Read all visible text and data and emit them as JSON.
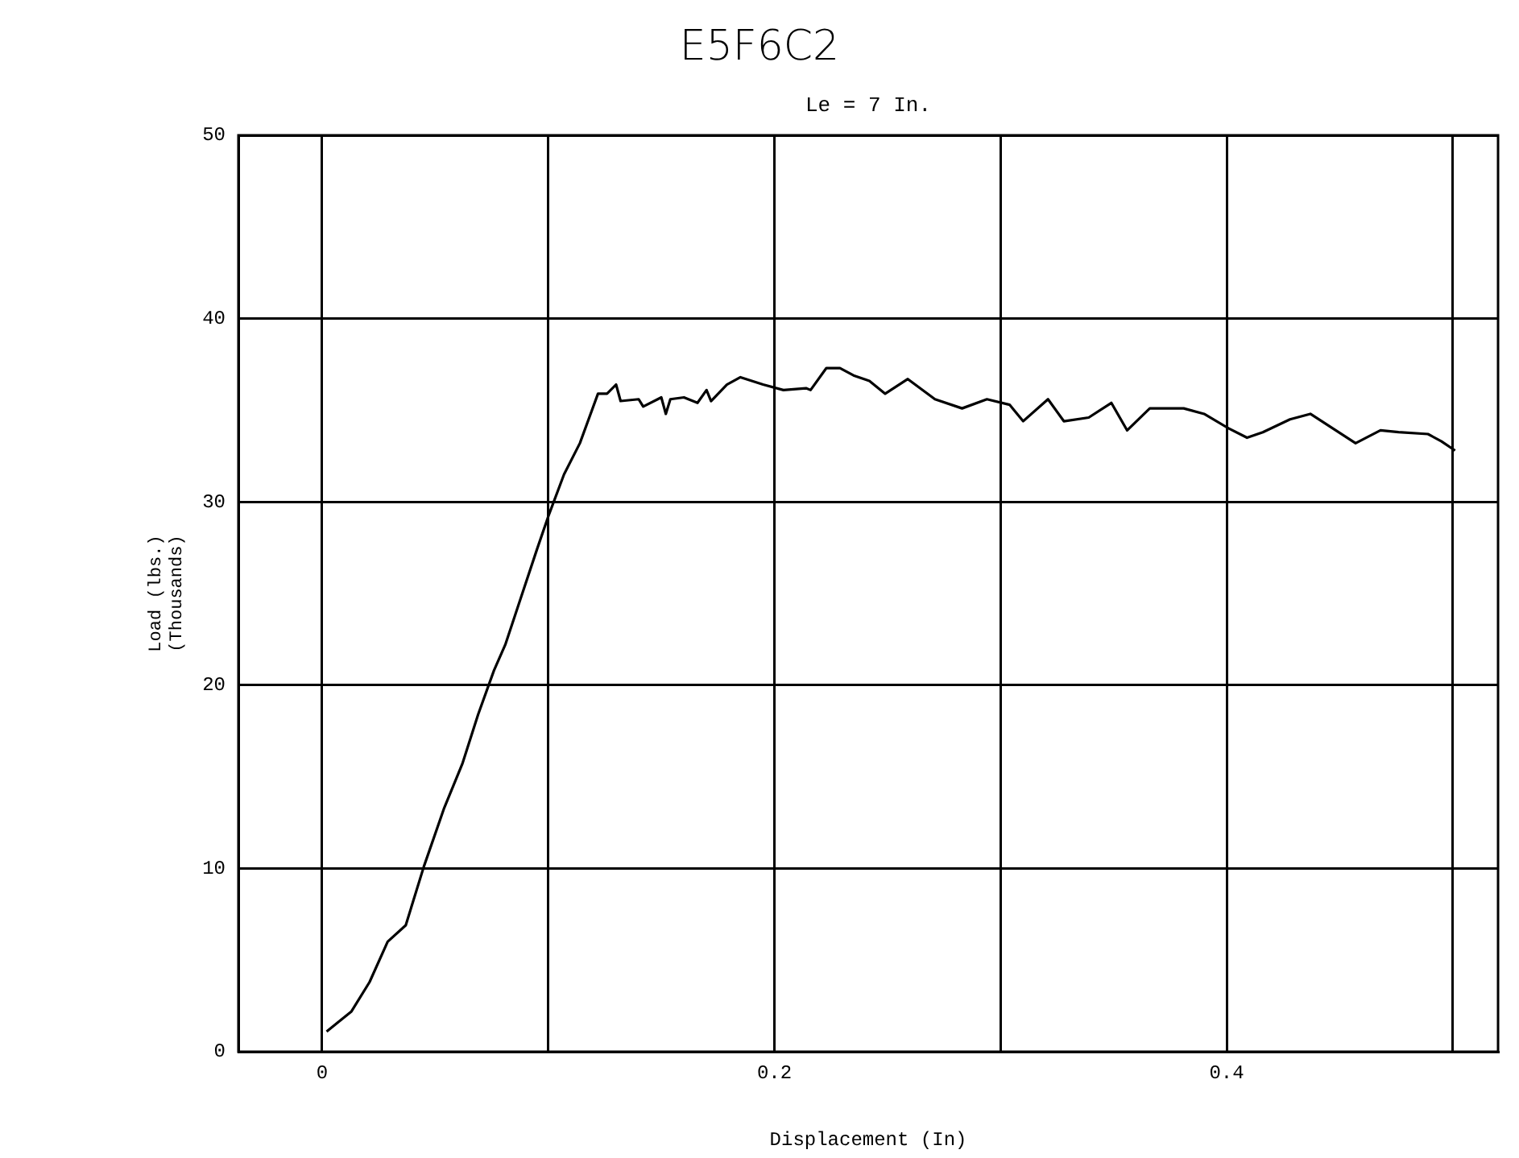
{
  "chart_data": {
    "type": "line",
    "title": "E5F6C2",
    "subtitle": "Le = 7 In.",
    "xlabel": "Displacement (In)",
    "ylabel": "Load (lbs.)\n(Thousands)",
    "xlim": [
      -0.037,
      0.52
    ],
    "xticks": [
      0,
      {
        "value": 0.1,
        "label": null
      },
      0.2,
      {
        "value": 0.3,
        "label": null
      },
      0.4,
      {
        "value": 0.5,
        "label": null
      }
    ],
    "ylim": [
      0,
      50
    ],
    "yticks": [
      0,
      10,
      20,
      30,
      40,
      50
    ],
    "grid": true,
    "legend": false,
    "marker": "none",
    "line_style": "solid",
    "series": [
      {
        "color": "#000000",
        "x": [
          0.002,
          0.013,
          0.021,
          0.029,
          0.037,
          0.045,
          0.054,
          0.062,
          0.069,
          0.076,
          0.081,
          0.088,
          0.095,
          0.1,
          0.107,
          0.114,
          0.122,
          0.126,
          0.13,
          0.132,
          0.14,
          0.142,
          0.15,
          0.152,
          0.154,
          0.16,
          0.166,
          0.17,
          0.172,
          0.179,
          0.185,
          0.195,
          0.204,
          0.214,
          0.216,
          0.223,
          0.229,
          0.235,
          0.242,
          0.249,
          0.259,
          0.271,
          0.283,
          0.294,
          0.304,
          0.31,
          0.321,
          0.328,
          0.339,
          0.349,
          0.356,
          0.366,
          0.381,
          0.39,
          0.401,
          0.409,
          0.416,
          0.428,
          0.437,
          0.447,
          0.457,
          0.468,
          0.476,
          0.489,
          0.495,
          0.501
        ],
        "values": [
          1.1,
          2.2,
          3.8,
          6.0,
          6.9,
          10.1,
          13.3,
          15.7,
          18.4,
          20.8,
          22.2,
          24.8,
          27.4,
          29.2,
          31.5,
          33.2,
          35.9,
          35.9,
          36.4,
          35.5,
          35.6,
          35.2,
          35.7,
          34.8,
          35.6,
          35.7,
          35.4,
          36.1,
          35.5,
          36.4,
          36.8,
          36.4,
          36.1,
          36.2,
          36.1,
          37.3,
          37.3,
          36.9,
          36.6,
          35.9,
          36.7,
          35.6,
          35.1,
          35.6,
          35.3,
          34.4,
          35.6,
          34.4,
          34.6,
          35.4,
          33.9,
          35.1,
          35.1,
          34.8,
          34.0,
          33.5,
          33.8,
          34.5,
          34.8,
          34.0,
          33.2,
          33.9,
          33.8,
          33.7,
          33.3,
          32.8
        ]
      }
    ]
  }
}
